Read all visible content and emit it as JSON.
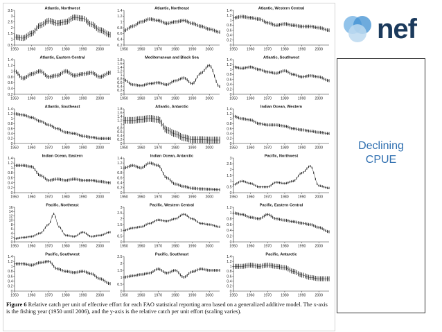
{
  "logo": {
    "text": "nef",
    "icon": "overlapping-circles-logo",
    "colors": [
      "#7fb9e6",
      "#3d8fd1",
      "#bcd9f0"
    ]
  },
  "side_panel": {
    "lines": [
      "Declining",
      "CPUE"
    ],
    "color": "#2f6fb0"
  },
  "caption": {
    "label": "Figure 6",
    "text": "Relative catch per unit of effective effort for each FAO statistical reporting area based on a generalized additive model. The x-axis is the fishing year (1950 until 2006), and the y-axis is the relative catch per unit effort (scaling varies)."
  },
  "chart_data": [
    {
      "type": "line",
      "title": "Atlantic, Northwest",
      "x": [
        1950,
        1955,
        1960,
        1965,
        1970,
        1975,
        1980,
        1985,
        1990,
        1995,
        2000,
        2006
      ],
      "y": [
        1.2,
        1.1,
        1.5,
        2.2,
        2.6,
        2.4,
        2.5,
        2.9,
        2.8,
        2.3,
        1.8,
        1.4
      ],
      "band": 0.5,
      "ylim": [
        0.5,
        3.5
      ],
      "yticks": [
        "0.5",
        "1",
        "1.5",
        "2",
        "2.5",
        "3",
        "3.5"
      ],
      "xlim": [
        1950,
        2006
      ],
      "xticks": [
        "1950",
        "1960",
        "1970",
        "1980",
        "1990",
        "2000"
      ]
    },
    {
      "type": "line",
      "title": "Atlantic, Northeast",
      "x": [
        1950,
        1955,
        1960,
        1965,
        1970,
        1975,
        1980,
        1985,
        1990,
        1995,
        2000,
        2006
      ],
      "y": [
        0.7,
        0.85,
        1.0,
        1.1,
        1.05,
        0.95,
        1.0,
        1.05,
        0.95,
        0.85,
        0.75,
        0.65
      ],
      "band": 0.12,
      "ylim": [
        0.2,
        1.4
      ],
      "yticks": [
        "0.2",
        "0.4",
        "0.6",
        "0.8",
        "1",
        "1.2",
        "1.4"
      ],
      "xlim": [
        1950,
        2006
      ],
      "xticks": [
        "1950",
        "1960",
        "1970",
        "1980",
        "1990",
        "2000"
      ]
    },
    {
      "type": "line",
      "title": "Atlantic, Western Central",
      "x": [
        1950,
        1955,
        1960,
        1965,
        1970,
        1975,
        1980,
        1985,
        1990,
        1995,
        2000,
        2006
      ],
      "y": [
        1.1,
        1.15,
        1.1,
        1.05,
        0.9,
        0.8,
        0.85,
        0.8,
        0.75,
        0.75,
        0.7,
        0.6
      ],
      "band": 0.14,
      "ylim": [
        0,
        1.4
      ],
      "yticks": [
        "0",
        "0.2",
        "0.4",
        "0.6",
        "0.8",
        "1",
        "1.2",
        "1.4"
      ],
      "xlim": [
        1950,
        2006
      ],
      "xticks": [
        "1950",
        "1960",
        "1970",
        "1980",
        "1990",
        "2000"
      ]
    },
    {
      "type": "line",
      "title": "Atlantic, Eastern Central",
      "x": [
        1950,
        1955,
        1960,
        1965,
        1970,
        1975,
        1980,
        1985,
        1990,
        1995,
        2000,
        2006
      ],
      "y": [
        1.0,
        0.75,
        0.9,
        1.0,
        0.8,
        0.85,
        1.0,
        0.85,
        0.9,
        0.95,
        0.8,
        0.95
      ],
      "band": 0.14,
      "ylim": [
        0.2,
        1.4
      ],
      "yticks": [
        "0.2",
        "0.4",
        "0.6",
        "0.8",
        "1",
        "1.2",
        "1.4"
      ],
      "xlim": [
        1950,
        2006
      ],
      "xticks": [
        "1950",
        "1960",
        "1970",
        "1980",
        "1990",
        "2000"
      ]
    },
    {
      "type": "line",
      "title": "Mediterranean and Black Sea",
      "x": [
        1950,
        1955,
        1960,
        1965,
        1970,
        1975,
        1980,
        1985,
        1990,
        1995,
        2000,
        2006
      ],
      "y": [
        0.75,
        0.5,
        0.45,
        0.55,
        0.6,
        0.5,
        0.7,
        0.85,
        0.55,
        1.1,
        1.5,
        0.4
      ],
      "band": 0.15,
      "ylim": [
        0,
        1.8
      ],
      "yticks": [
        "0",
        "0.2",
        "0.4",
        "0.6",
        "0.8",
        "1",
        "1.2",
        "1.4",
        "1.6",
        "1.8"
      ],
      "xlim": [
        1950,
        2006
      ],
      "xticks": [
        "1950",
        "1960",
        "1970",
        "1980",
        "1990",
        "2000"
      ]
    },
    {
      "type": "line",
      "title": "Atlantic, Southwest",
      "x": [
        1950,
        1955,
        1960,
        1965,
        1970,
        1975,
        1980,
        1985,
        1990,
        1995,
        2000,
        2006
      ],
      "y": [
        1.1,
        1.05,
        1.1,
        1.0,
        0.9,
        0.85,
        0.95,
        0.8,
        0.7,
        0.75,
        0.7,
        0.55
      ],
      "band": 0.12,
      "ylim": [
        0,
        1.4
      ],
      "yticks": [
        "0",
        "0.2",
        "0.4",
        "0.6",
        "0.8",
        "1",
        "1.2",
        "1.4"
      ],
      "xlim": [
        1950,
        2006
      ],
      "xticks": [
        "1950",
        "1960",
        "1970",
        "1980",
        "1990",
        "2000"
      ]
    },
    {
      "type": "line",
      "title": "Atlantic, Southeast",
      "x": [
        1950,
        1955,
        1960,
        1965,
        1970,
        1975,
        1980,
        1985,
        1990,
        1995,
        2000,
        2006
      ],
      "y": [
        1.2,
        1.15,
        1.05,
        0.9,
        0.75,
        0.6,
        0.45,
        0.4,
        0.3,
        0.25,
        0.2,
        0.2
      ],
      "band": 0.12,
      "ylim": [
        0,
        1.4
      ],
      "yticks": [
        "0",
        "0.2",
        "0.4",
        "0.6",
        "0.8",
        "1",
        "1.2",
        "1.4"
      ],
      "xlim": [
        1950,
        2006
      ],
      "xticks": [
        "1950",
        "1960",
        "1970",
        "1980",
        "1990",
        "2000"
      ]
    },
    {
      "type": "line",
      "title": "Atlantic, Antarctic",
      "x": [
        1950,
        1955,
        1960,
        1965,
        1970,
        1975,
        1980,
        1985,
        1990,
        1995,
        2000,
        2006
      ],
      "y": [
        1.2,
        1.2,
        1.25,
        1.3,
        1.25,
        0.7,
        0.5,
        0.3,
        0.2,
        0.2,
        0.18,
        0.18
      ],
      "band": 0.35,
      "ylim": [
        0,
        1.8
      ],
      "yticks": [
        "0",
        "0.2",
        "0.4",
        "0.6",
        "0.8",
        "1",
        "1.2",
        "1.4",
        "1.6",
        "1.8"
      ],
      "xlim": [
        1950,
        2006
      ],
      "xticks": [
        "1950",
        "1960",
        "1970",
        "1980",
        "1990",
        "2000"
      ]
    },
    {
      "type": "line",
      "title": "Indian Ocean, Western",
      "x": [
        1950,
        1955,
        1960,
        1965,
        1970,
        1975,
        1980,
        1985,
        1990,
        1995,
        2000,
        2006
      ],
      "y": [
        1.1,
        1.0,
        0.95,
        0.8,
        0.75,
        0.75,
        0.7,
        0.6,
        0.55,
        0.5,
        0.45,
        0.4
      ],
      "band": 0.12,
      "ylim": [
        0,
        1.4
      ],
      "yticks": [
        "0",
        "0.2",
        "0.4",
        "0.6",
        "0.8",
        "1",
        "1.2",
        "1.4"
      ],
      "xlim": [
        1950,
        2006
      ],
      "xticks": [
        "1950",
        "1960",
        "1970",
        "1980",
        "1990",
        "2000"
      ]
    },
    {
      "type": "line",
      "title": "Indian Ocean, Eastern",
      "x": [
        1950,
        1955,
        1960,
        1965,
        1970,
        1975,
        1980,
        1985,
        1990,
        1995,
        2000,
        2006
      ],
      "y": [
        1.1,
        1.1,
        1.05,
        0.7,
        0.5,
        0.55,
        0.5,
        0.55,
        0.5,
        0.5,
        0.45,
        0.4
      ],
      "band": 0.12,
      "ylim": [
        0,
        1.4
      ],
      "yticks": [
        "0",
        "0.2",
        "0.4",
        "0.6",
        "0.8",
        "1",
        "1.2",
        "1.4"
      ],
      "xlim": [
        1950,
        2006
      ],
      "xticks": [
        "1950",
        "1960",
        "1970",
        "1980",
        "1990",
        "2000"
      ]
    },
    {
      "type": "line",
      "title": "Indian Ocean, Antarctic",
      "x": [
        1950,
        1955,
        1960,
        1965,
        1970,
        1975,
        1980,
        1985,
        1990,
        1995,
        2000,
        2006
      ],
      "y": [
        1.0,
        1.1,
        1.0,
        1.2,
        1.1,
        0.6,
        0.35,
        0.25,
        0.18,
        0.15,
        0.14,
        0.12
      ],
      "band": 0.12,
      "ylim": [
        0,
        1.4
      ],
      "yticks": [
        "0",
        "0.2",
        "0.4",
        "0.6",
        "0.8",
        "1",
        "1.2",
        "1.4"
      ],
      "xlim": [
        1950,
        2006
      ],
      "xticks": [
        "1950",
        "1960",
        "1970",
        "1980",
        "1990",
        "2000"
      ]
    },
    {
      "type": "line",
      "title": "Pacific, Northwest",
      "x": [
        1950,
        1955,
        1960,
        1965,
        1970,
        1975,
        1980,
        1985,
        1990,
        1995,
        2000,
        2006
      ],
      "y": [
        0.7,
        1.0,
        0.8,
        0.5,
        0.5,
        0.9,
        0.8,
        1.0,
        1.7,
        2.3,
        0.6,
        0.4
      ],
      "band": 0.2,
      "ylim": [
        0,
        3
      ],
      "yticks": [
        "0",
        "0.5",
        "1",
        "1.5",
        "2",
        "2.5",
        "3"
      ],
      "xlim": [
        1950,
        2006
      ],
      "xticks": [
        "1950",
        "1960",
        "1970",
        "1980",
        "1990",
        "2000"
      ]
    },
    {
      "type": "line",
      "title": "Pacific, Northeast",
      "x": [
        1950,
        1955,
        1960,
        1965,
        1970,
        1973,
        1976,
        1980,
        1985,
        1990,
        1995,
        2000,
        2006
      ],
      "y": [
        1.5,
        2.0,
        2.5,
        4.0,
        8.0,
        13.0,
        7.0,
        3.0,
        2.5,
        4.5,
        2.5,
        3.0,
        4.5
      ],
      "band": 1.0,
      "ylim": [
        0,
        16
      ],
      "yticks": [
        "0",
        "2",
        "4",
        "6",
        "8",
        "10",
        "12",
        "14",
        "16"
      ],
      "xlim": [
        1950,
        2006
      ],
      "xticks": [
        "1950",
        "1960",
        "1970",
        "1980",
        "1990",
        "2000"
      ]
    },
    {
      "type": "line",
      "title": "Pacific, Western Central",
      "x": [
        1950,
        1955,
        1960,
        1965,
        1970,
        1975,
        1980,
        1985,
        1990,
        1995,
        2000,
        2006
      ],
      "y": [
        1.0,
        1.2,
        1.3,
        1.6,
        1.9,
        1.8,
        2.0,
        2.4,
        2.0,
        1.6,
        1.5,
        1.3
      ],
      "band": 0.2,
      "ylim": [
        0,
        3
      ],
      "yticks": [
        "0",
        "0.5",
        "1",
        "1.5",
        "2",
        "2.5",
        "3"
      ],
      "xlim": [
        1950,
        2006
      ],
      "xticks": [
        "1950",
        "1960",
        "1970",
        "1980",
        "1990",
        "2000"
      ]
    },
    {
      "type": "line",
      "title": "Pacific, Eastern Central",
      "x": [
        1950,
        1955,
        1960,
        1965,
        1970,
        1975,
        1980,
        1985,
        1990,
        1995,
        2000,
        2006
      ],
      "y": [
        1.0,
        0.95,
        0.85,
        0.8,
        0.95,
        0.8,
        0.75,
        0.7,
        0.65,
        0.6,
        0.5,
        0.35
      ],
      "band": 0.1,
      "ylim": [
        0,
        1.2
      ],
      "yticks": [
        "0",
        "0.2",
        "0.4",
        "0.6",
        "0.8",
        "1",
        "1.2"
      ],
      "xlim": [
        1950,
        2006
      ],
      "xticks": [
        "1950",
        "1960",
        "1970",
        "1980",
        "1990",
        "2000"
      ]
    },
    {
      "type": "line",
      "title": "Pacific, Southwest",
      "x": [
        1950,
        1955,
        1960,
        1965,
        1970,
        1975,
        1980,
        1985,
        1990,
        1995,
        2000,
        2006
      ],
      "y": [
        1.1,
        1.1,
        1.05,
        1.15,
        1.2,
        0.9,
        0.8,
        0.75,
        0.8,
        0.7,
        0.5,
        0.3
      ],
      "band": 0.12,
      "ylim": [
        0,
        1.4
      ],
      "yticks": [
        "0",
        "0.2",
        "0.4",
        "0.6",
        "0.8",
        "1",
        "1.2",
        "1.4"
      ],
      "xlim": [
        1950,
        2006
      ],
      "xticks": [
        "1950",
        "1960",
        "1970",
        "1980",
        "1990",
        "2000"
      ]
    },
    {
      "type": "line",
      "title": "Pacific, Southeast",
      "x": [
        1950,
        1955,
        1960,
        1965,
        1970,
        1975,
        1980,
        1985,
        1990,
        1995,
        2000,
        2006
      ],
      "y": [
        1.0,
        1.1,
        1.2,
        1.3,
        1.6,
        1.3,
        1.5,
        1.0,
        1.4,
        1.6,
        1.5,
        1.5
      ],
      "band": 0.2,
      "ylim": [
        0,
        2.5
      ],
      "yticks": [
        "0",
        "0.5",
        "1",
        "1.5",
        "2",
        "2.5"
      ],
      "xlim": [
        1950,
        2006
      ],
      "xticks": [
        "1950",
        "1960",
        "1970",
        "1980",
        "1990",
        "2000"
      ]
    },
    {
      "type": "line",
      "title": "Pacific, Antarctic",
      "x": [
        1950,
        1955,
        1960,
        1965,
        1970,
        1975,
        1980,
        1985,
        1990,
        1995,
        2000,
        2006
      ],
      "y": [
        1.0,
        1.0,
        1.05,
        1.0,
        1.05,
        1.0,
        0.95,
        0.8,
        0.65,
        0.55,
        0.5,
        0.5
      ],
      "band": 0.2,
      "ylim": [
        0,
        1.4
      ],
      "yticks": [
        "0",
        "0.2",
        "0.4",
        "0.6",
        "0.8",
        "1",
        "1.2",
        "1.4"
      ],
      "xlim": [
        1950,
        2006
      ],
      "xticks": [
        "1950",
        "1960",
        "1970",
        "1980",
        "1990",
        "2000"
      ]
    }
  ]
}
